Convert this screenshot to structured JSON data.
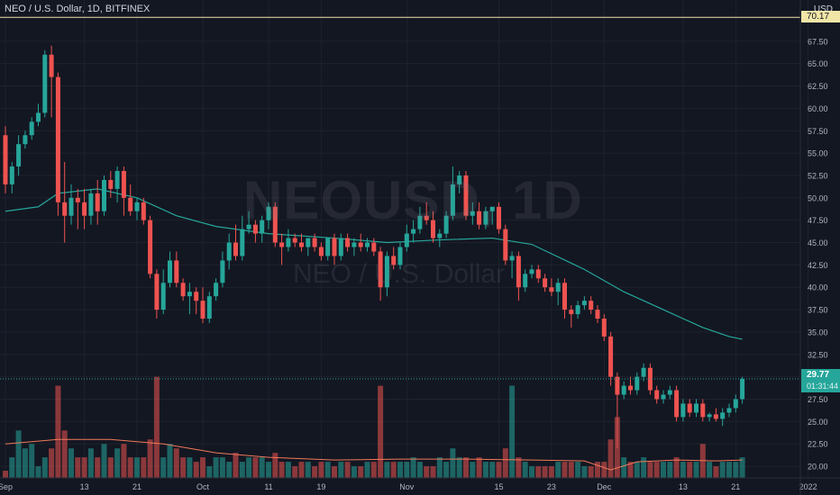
{
  "header": {
    "symbol_title": "NEO / U.S. Dollar, 1D, BITFINEX",
    "currency": "USD"
  },
  "watermark": {
    "ticker": "NEOUSD, 1D",
    "name": "NEO / U.S. Dollar"
  },
  "price_labels": {
    "reference_line": "70.17",
    "last_price": "29.77",
    "countdown": "01:31:44"
  },
  "colors": {
    "background": "#131722",
    "up": "#26a69a",
    "down": "#ef5350",
    "ma": "#26a69a",
    "volume_ma": "#f0795b",
    "reference_line": "#f2e6a7"
  },
  "chart_data": {
    "type": "candlestick",
    "title": "NEO / U.S. Dollar, 1D, BITFINEX",
    "ylim": [
      18.7,
      70.2
    ],
    "y_ticks": [
      "20.00",
      "22.50",
      "25.00",
      "27.50",
      "30.00",
      "32.50",
      "35.00",
      "37.50",
      "40.00",
      "42.50",
      "45.00",
      "47.50",
      "50.00",
      "52.50",
      "55.00",
      "57.50",
      "60.00",
      "62.50",
      "65.00",
      "67.50"
    ],
    "x_tick_labels": [
      {
        "label": "Sep",
        "day": 0
      },
      {
        "label": "13",
        "day": 12
      },
      {
        "label": "21",
        "day": 20
      },
      {
        "label": "Oct",
        "day": 30
      },
      {
        "label": "11",
        "day": 40
      },
      {
        "label": "19",
        "day": 48
      },
      {
        "label": "Nov",
        "day": 61
      },
      {
        "label": "15",
        "day": 75
      },
      {
        "label": "23",
        "day": 83
      },
      {
        "label": "Dec",
        "day": 91
      },
      {
        "label": "13",
        "day": 103
      },
      {
        "label": "21",
        "day": 111
      },
      {
        "label": "2022",
        "day": 122
      }
    ],
    "candles": [
      [
        0,
        57,
        58,
        50.5,
        51.5
      ],
      [
        1,
        51.5,
        54,
        50.5,
        53.5
      ],
      [
        2,
        53.5,
        57,
        52.5,
        56
      ],
      [
        3,
        56,
        57.5,
        55.5,
        57
      ],
      [
        4,
        57,
        59,
        56.5,
        58.5
      ],
      [
        5,
        58.5,
        60.5,
        58,
        59.5
      ],
      [
        6,
        59.5,
        66.5,
        59,
        66
      ],
      [
        7,
        66,
        67,
        59,
        63.5
      ],
      [
        8,
        63.5,
        64,
        48,
        49.5
      ],
      [
        9,
        49.5,
        54,
        45,
        48
      ],
      [
        10,
        48,
        51.5,
        47,
        50
      ],
      [
        11,
        50,
        51,
        46.5,
        49.5
      ],
      [
        12,
        49.5,
        51,
        46.5,
        48
      ],
      [
        13,
        48,
        51,
        47,
        50.5
      ],
      [
        14,
        50.5,
        52,
        47,
        48.5
      ],
      [
        15,
        48.5,
        52.5,
        48,
        52
      ],
      [
        16,
        52,
        53,
        50,
        51
      ],
      [
        17,
        51,
        53.5,
        49.5,
        53
      ],
      [
        18,
        53,
        53.5,
        48,
        50
      ],
      [
        19,
        50,
        51.5,
        48,
        48.5
      ],
      [
        20,
        48.5,
        50,
        47.5,
        49.5
      ],
      [
        21,
        49.5,
        50,
        47,
        47.5
      ],
      [
        22,
        47.5,
        48,
        41,
        41.5
      ],
      [
        23,
        41.5,
        42,
        36.5,
        37.5
      ],
      [
        24,
        37.5,
        42,
        37,
        40.5
      ],
      [
        25,
        40.5,
        44,
        40,
        43
      ],
      [
        26,
        43,
        44,
        40,
        40.5
      ],
      [
        27,
        40.5,
        41,
        38.5,
        39
      ],
      [
        28,
        39,
        40.5,
        37,
        39.5
      ],
      [
        29,
        39.5,
        40,
        37,
        38.5
      ],
      [
        30,
        38.5,
        40,
        36,
        36.5
      ],
      [
        31,
        36.5,
        39.5,
        36,
        39
      ],
      [
        32,
        39,
        41,
        38.5,
        40.5
      ],
      [
        33,
        40.5,
        44,
        40,
        43
      ],
      [
        34,
        43,
        46,
        42,
        45
      ],
      [
        35,
        45,
        47,
        43,
        43.5
      ],
      [
        36,
        43.5,
        48,
        43,
        46.5
      ],
      [
        37,
        46.5,
        48.5,
        46,
        47
      ],
      [
        38,
        47,
        47.5,
        45,
        46
      ],
      [
        39,
        46,
        48,
        45,
        47.5
      ],
      [
        40,
        47.5,
        49.5,
        46.5,
        49
      ],
      [
        41,
        49,
        49.5,
        44.5,
        45
      ],
      [
        42,
        45,
        46,
        42.5,
        44.5
      ],
      [
        43,
        44.5,
        46.5,
        44,
        45.5
      ],
      [
        44,
        45.5,
        46,
        44.5,
        45
      ],
      [
        45,
        45,
        46,
        44,
        44.5
      ],
      [
        46,
        44.5,
        45.5,
        43.5,
        45.5
      ],
      [
        47,
        45.5,
        46,
        44,
        44.5
      ],
      [
        48,
        44.5,
        45,
        43,
        43.5
      ],
      [
        49,
        43.5,
        45.5,
        43,
        45.5
      ],
      [
        50,
        45.5,
        46,
        42.5,
        43.5
      ],
      [
        51,
        43.5,
        46,
        43,
        45.5
      ],
      [
        52,
        45.5,
        46,
        44,
        44.5
      ],
      [
        53,
        44.5,
        45.5,
        43.5,
        45
      ],
      [
        54,
        45,
        46,
        44,
        44.5
      ],
      [
        55,
        44.5,
        45.5,
        44,
        45
      ],
      [
        56,
        45,
        45.5,
        43.5,
        44
      ],
      [
        57,
        44,
        44.5,
        38.5,
        40
      ],
      [
        58,
        40,
        44,
        39,
        43.5
      ],
      [
        59,
        43.5,
        44.5,
        42,
        42.5
      ],
      [
        60,
        42.5,
        45,
        42,
        44.5
      ],
      [
        61,
        44.5,
        47,
        44,
        46
      ],
      [
        62,
        46,
        47.5,
        45,
        46.5
      ],
      [
        63,
        46.5,
        49,
        46,
        48
      ],
      [
        64,
        48,
        49.5,
        47,
        47.5
      ],
      [
        65,
        47.5,
        48.5,
        45,
        45.5
      ],
      [
        66,
        45.5,
        46.5,
        44.5,
        46
      ],
      [
        67,
        46,
        48.5,
        45.5,
        48
      ],
      [
        68,
        48,
        53.5,
        47.5,
        51.5
      ],
      [
        69,
        51.5,
        53,
        50.5,
        52.5
      ],
      [
        70,
        52.5,
        53,
        47.5,
        48
      ],
      [
        71,
        48,
        49.5,
        47,
        48.5
      ],
      [
        72,
        48.5,
        49.5,
        46.5,
        47
      ],
      [
        73,
        47,
        49,
        46.5,
        48.5
      ],
      [
        74,
        48.5,
        49,
        47,
        49
      ],
      [
        75,
        49,
        49.5,
        46,
        46.5
      ],
      [
        76,
        46.5,
        47,
        42.5,
        43
      ],
      [
        77,
        43,
        44,
        41,
        43.5
      ],
      [
        78,
        43.5,
        44,
        38.5,
        40
      ],
      [
        79,
        40,
        42,
        39.5,
        41.5
      ],
      [
        80,
        41.5,
        42.5,
        41,
        42
      ],
      [
        81,
        42,
        42.5,
        40.5,
        41
      ],
      [
        82,
        41,
        41.5,
        39.5,
        40
      ],
      [
        83,
        40,
        41,
        39,
        39.5
      ],
      [
        84,
        39.5,
        41,
        38,
        40.5
      ],
      [
        85,
        40.5,
        41,
        36.5,
        37.5
      ],
      [
        86,
        37.5,
        38,
        35.5,
        37
      ],
      [
        87,
        37,
        38.5,
        36.5,
        38
      ],
      [
        88,
        38,
        39,
        37.5,
        38.5
      ],
      [
        89,
        38.5,
        39,
        37,
        37.5
      ],
      [
        90,
        37.5,
        38,
        36,
        36.5
      ],
      [
        91,
        36.5,
        37,
        34,
        34.5
      ],
      [
        92,
        34.5,
        35,
        29,
        30
      ],
      [
        93,
        30,
        30.5,
        22,
        28
      ],
      [
        94,
        28,
        29.5,
        27.5,
        29
      ],
      [
        95,
        29,
        30,
        28,
        28.5
      ],
      [
        96,
        28.5,
        30.5,
        28,
        30
      ],
      [
        97,
        30,
        31.5,
        29.5,
        31
      ],
      [
        98,
        31,
        31.5,
        28,
        28.5
      ],
      [
        99,
        28.5,
        29,
        27,
        27.5
      ],
      [
        100,
        27.5,
        28.5,
        27,
        28
      ],
      [
        101,
        28,
        29,
        27.5,
        28.5
      ],
      [
        102,
        28.5,
        29,
        25,
        25.5
      ],
      [
        103,
        25.5,
        27.5,
        25,
        27
      ],
      [
        104,
        27,
        27.5,
        25.5,
        26
      ],
      [
        105,
        26,
        27.5,
        25.5,
        27
      ],
      [
        106,
        27,
        27.5,
        25,
        25.5
      ],
      [
        107,
        25.5,
        26,
        25,
        25.8
      ],
      [
        108,
        25.8,
        26.5,
        25,
        25.3
      ],
      [
        109,
        25.3,
        26.5,
        24.5,
        26
      ],
      [
        110,
        26,
        27,
        25.5,
        26.5
      ],
      [
        111,
        26.5,
        28,
        26,
        27.5
      ],
      [
        112,
        27.5,
        30,
        27,
        29.77
      ]
    ],
    "volume": [
      19.5,
      21,
      24,
      22,
      22.5,
      20,
      21,
      22,
      27,
      24,
      22,
      21,
      21,
      22,
      21,
      22.5,
      21,
      22,
      22.5,
      21,
      21,
      21,
      23,
      22,
      21,
      22.5,
      22,
      21,
      21,
      20.5,
      21,
      20,
      21,
      21,
      20.5,
      21.5,
      20.5,
      21,
      21,
      21,
      20.5,
      21.5,
      20.5,
      20.5,
      20,
      20.5,
      20.5,
      20,
      20.5,
      20.5,
      20,
      20.5,
      20.5,
      20,
      20,
      20.5,
      20.5,
      21.5,
      20.5,
      20.5,
      20.5,
      20.5,
      21,
      20.5,
      20,
      20,
      21,
      20.5,
      22,
      21,
      21,
      20.5,
      21,
      20.5,
      20.5,
      20.5,
      22,
      20.5,
      21,
      20.5,
      20,
      20,
      20,
      20,
      20.5,
      20.5,
      20.5,
      20.5,
      20,
      20,
      20.5,
      20.5,
      23,
      22.5,
      21,
      20.5,
      20.5,
      21,
      20.5,
      20.5,
      20.5,
      20.5,
      21,
      20.5,
      20.5,
      20.5,
      21.5,
      20.5,
      20,
      20.5,
      20.5,
      20.5,
      21
    ],
    "volume_spikes": [
      [
        8,
        29
      ],
      [
        23,
        30
      ],
      [
        57,
        29
      ],
      [
        77,
        29
      ],
      [
        93,
        25.5
      ],
      [
        106,
        22.5
      ]
    ],
    "moving_average_points": [
      [
        0,
        48.5
      ],
      [
        5,
        49
      ],
      [
        8,
        50.5
      ],
      [
        14,
        51
      ],
      [
        20,
        50
      ],
      [
        26,
        48
      ],
      [
        32,
        46.8
      ],
      [
        40,
        46
      ],
      [
        50,
        45.5
      ],
      [
        58,
        45
      ],
      [
        66,
        45.3
      ],
      [
        74,
        45.5
      ],
      [
        80,
        44.8
      ],
      [
        88,
        42
      ],
      [
        94,
        39.5
      ],
      [
        100,
        37.5
      ],
      [
        106,
        35.5
      ],
      [
        110,
        34.5
      ],
      [
        112,
        34.2
      ]
    ],
    "volume_ma_points": [
      [
        0,
        22.5
      ],
      [
        8,
        23
      ],
      [
        16,
        23
      ],
      [
        24,
        22.5
      ],
      [
        32,
        21.5
      ],
      [
        40,
        21
      ],
      [
        50,
        20.7
      ],
      [
        60,
        20.8
      ],
      [
        70,
        20.8
      ],
      [
        80,
        20.7
      ],
      [
        88,
        20.6
      ],
      [
        92,
        19.6
      ],
      [
        96,
        20.5
      ],
      [
        102,
        20.7
      ],
      [
        108,
        20.6
      ],
      [
        112,
        20.7
      ]
    ],
    "reference_level": 70.17
  }
}
